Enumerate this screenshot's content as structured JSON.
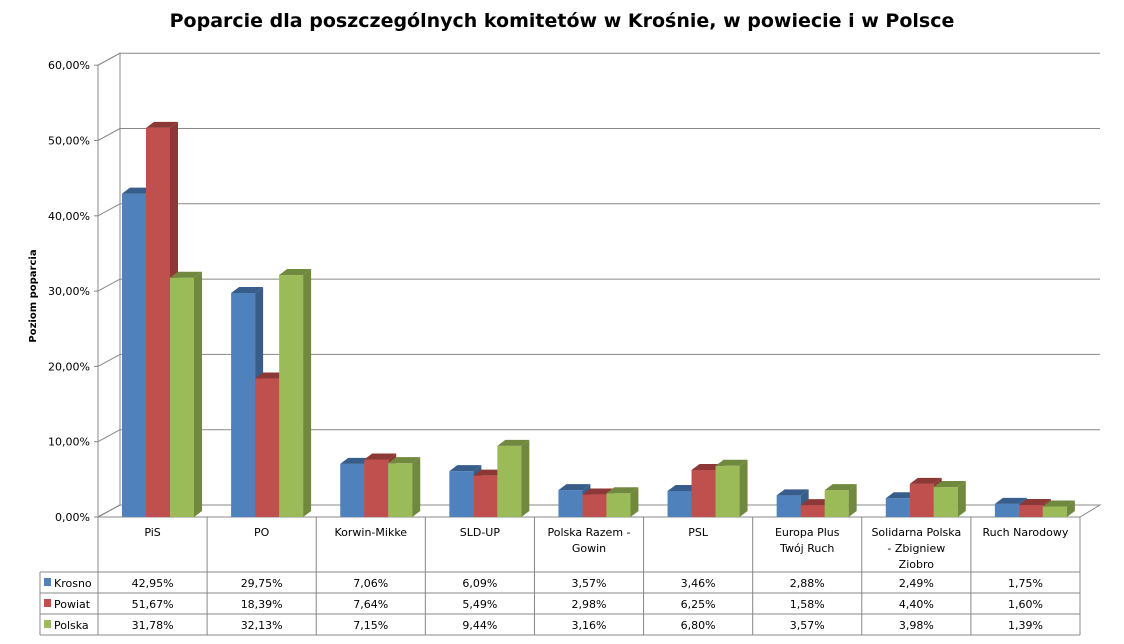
{
  "chart_data": {
    "type": "bar",
    "title": "Poparcie dla poszczególnych komitetów w Krośnie, w powiecie i w Polsce",
    "ylabel": "Poziom poparcia",
    "xlabel": "",
    "ylim": [
      0,
      60
    ],
    "yticks": [
      "0,00%",
      "10,00%",
      "20,00%",
      "30,00%",
      "40,00%",
      "50,00%",
      "60,00%"
    ],
    "categories": [
      [
        "PiS"
      ],
      [
        "PO"
      ],
      [
        "Korwin-Mikke"
      ],
      [
        "SLD-UP"
      ],
      [
        "Polska Razem -",
        "Gowin"
      ],
      [
        "PSL"
      ],
      [
        "Europa Plus",
        "Twój Ruch"
      ],
      [
        "Solidarna Polska",
        "- Zbigniew",
        "Ziobro"
      ],
      [
        "Ruch Narodowy"
      ]
    ],
    "series": [
      {
        "name": "Krosno",
        "color": "#4F81BD",
        "side": "#385D8A",
        "values": [
          42.95,
          29.75,
          7.06,
          6.09,
          3.57,
          3.46,
          2.88,
          2.49,
          1.75
        ],
        "labels": [
          "42,95%",
          "29,75%",
          "7,06%",
          "6,09%",
          "3,57%",
          "3,46%",
          "2,88%",
          "2,49%",
          "1,75%"
        ]
      },
      {
        "name": "Powiat",
        "color": "#C0504D",
        "side": "#8C3836",
        "values": [
          51.67,
          18.39,
          7.64,
          5.49,
          2.98,
          6.25,
          1.58,
          4.4,
          1.6
        ],
        "labels": [
          "51,67%",
          "18,39%",
          "7,64%",
          "5,49%",
          "2,98%",
          "6,25%",
          "1,58%",
          "4,40%",
          "1,60%"
        ]
      },
      {
        "name": "Polska",
        "color": "#9BBB59",
        "side": "#71893F",
        "values": [
          31.78,
          32.13,
          7.15,
          9.44,
          3.16,
          6.8,
          3.57,
          3.98,
          1.39
        ],
        "labels": [
          "31,78%",
          "32,13%",
          "7,15%",
          "9,44%",
          "3,16%",
          "6,80%",
          "3,57%",
          "3,98%",
          "1,39%"
        ]
      }
    ],
    "grid": true,
    "legend": "data-table"
  }
}
